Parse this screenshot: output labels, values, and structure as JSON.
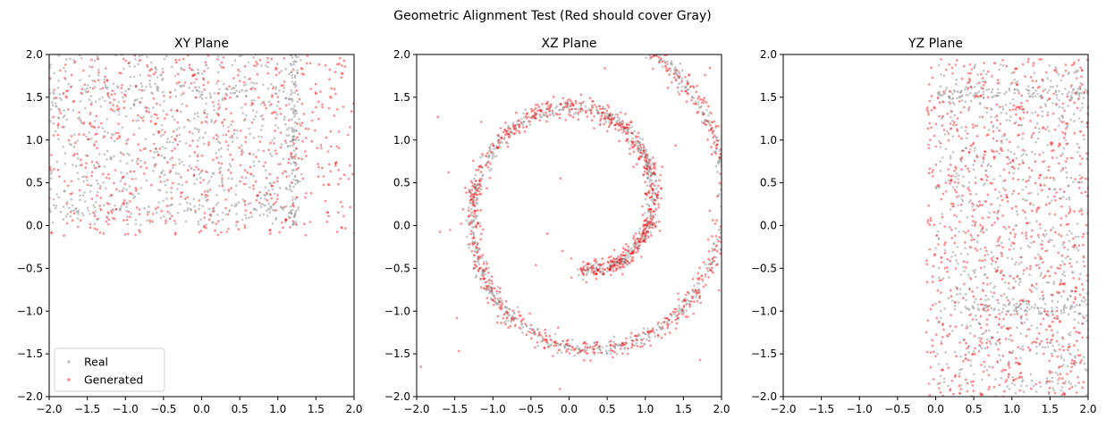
{
  "figure": {
    "suptitle": "Geometric Alignment Test (Red should cover Gray)"
  },
  "legend": {
    "items": [
      {
        "label": "Real",
        "color": "#808080"
      },
      {
        "label": "Generated",
        "color": "#ff0000"
      }
    ],
    "placement": "lower-left",
    "panel": 0
  },
  "chart_data": [
    {
      "type": "scatter",
      "title": "XY Plane",
      "xlabel": "",
      "ylabel": "",
      "xlim": [
        -2.0,
        2.0
      ],
      "ylim": [
        -2.0,
        2.0
      ],
      "xticks": [
        "−2.0",
        "−1.5",
        "−1.0",
        "−0.5",
        "0.0",
        "0.5",
        "1.0",
        "1.5",
        "2.0"
      ],
      "yticks": [
        "−2.0",
        "−1.5",
        "−1.0",
        "−0.5",
        "0.0",
        "0.5",
        "1.0",
        "1.5",
        "2.0"
      ],
      "grid": false,
      "series": [
        {
          "name": "Real",
          "color": "#808080",
          "distribution": "uniform band x∈[-2,1.3], y∈[0,2], denser edges at x≈1.2 and y≈0.2, 1.6"
        },
        {
          "name": "Generated",
          "color": "#ff0000",
          "distribution": "uniform band x∈[-2,2], y∈[-0.1,2]"
        }
      ]
    },
    {
      "type": "scatter",
      "title": "XZ Plane",
      "xlabel": "",
      "ylabel": "",
      "xlim": [
        -2.0,
        2.0
      ],
      "ylim": [
        -2.0,
        2.0
      ],
      "xticks": [
        "−2.0",
        "−1.5",
        "−1.0",
        "−0.5",
        "0.0",
        "0.5",
        "1.0",
        "1.5",
        "2.0"
      ],
      "yticks": [
        "−2.0",
        "−1.5",
        "−1.0",
        "−0.5",
        "0.0",
        "0.5",
        "1.0",
        "1.5",
        "2.0"
      ],
      "grid": false,
      "series": [
        {
          "name": "Real",
          "color": "#808080",
          "distribution": "swiss-roll spiral from (0.2,-0.95) outward past (1.25,0.2), (-0.3,1.6), (-1.9,-0.3), (-0.7,-2.0)"
        },
        {
          "name": "Generated",
          "color": "#ff0000",
          "distribution": "same spiral with small scatter"
        }
      ]
    },
    {
      "type": "scatter",
      "title": "YZ Plane",
      "xlabel": "",
      "ylabel": "",
      "xlim": [
        -2.0,
        2.0
      ],
      "ylim": [
        -2.0,
        2.0
      ],
      "xticks": [
        "−2.0",
        "−1.5",
        "−1.0",
        "−0.5",
        "0.0",
        "0.5",
        "1.0",
        "1.5",
        "2.0"
      ],
      "yticks": [
        "−2.0",
        "−1.5",
        "−1.0",
        "−0.5",
        "0.0",
        "0.5",
        "1.0",
        "1.5",
        "2.0"
      ],
      "grid": false,
      "series": [
        {
          "name": "Real",
          "color": "#808080",
          "distribution": "band y∈[0,2], z∈[-2,1.9], denser at z≈1.55 and z≈-0.95"
        },
        {
          "name": "Generated",
          "color": "#ff0000",
          "distribution": "band y∈[-0.1,2], z∈[-2,1.9]"
        }
      ]
    }
  ]
}
